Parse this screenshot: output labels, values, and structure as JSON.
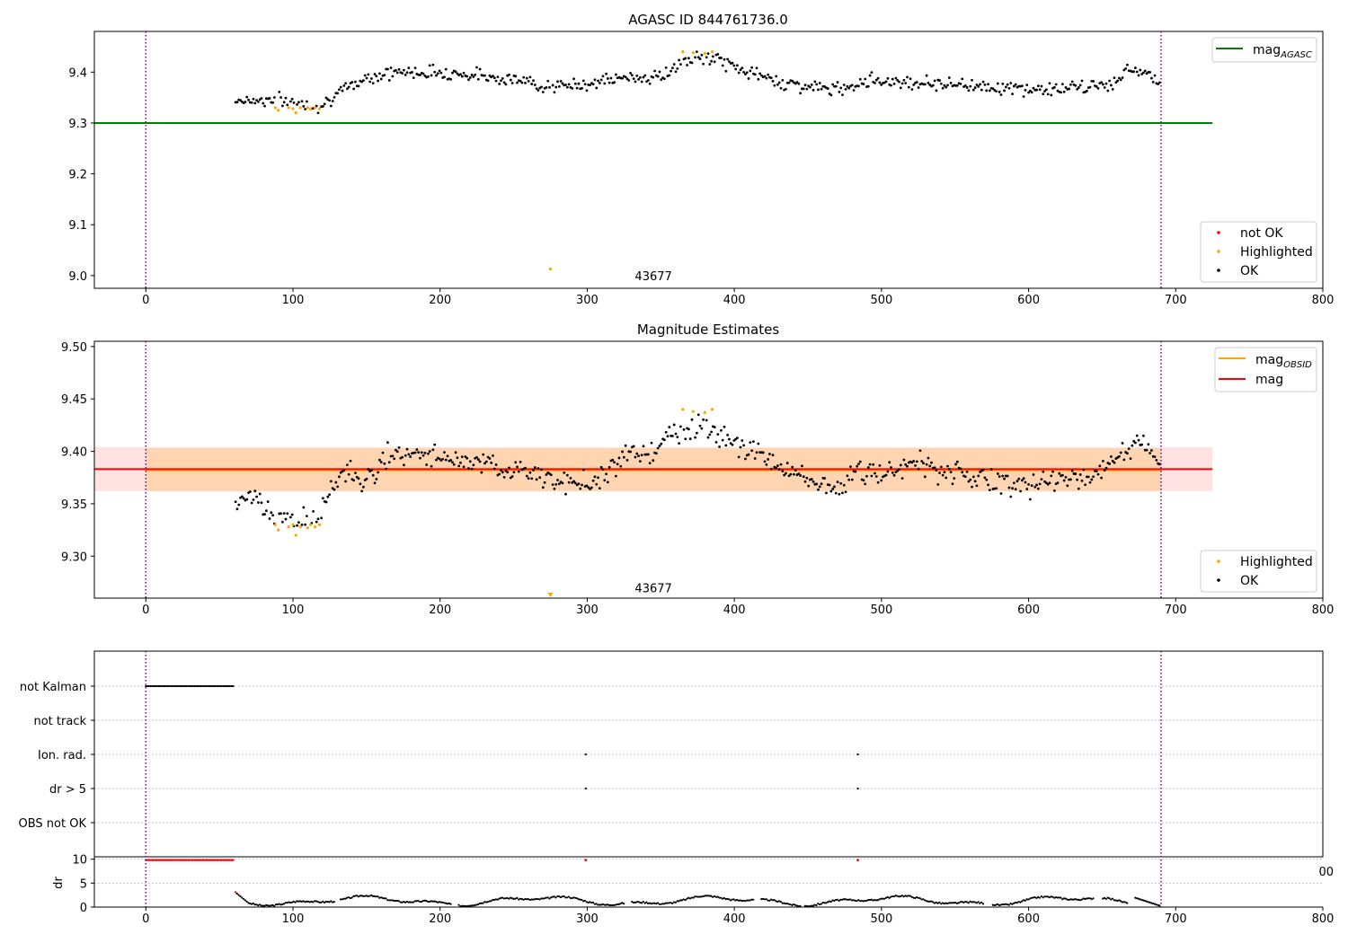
{
  "chart_data": [
    {
      "type": "scatter",
      "title": "AGASC ID 844761736.0",
      "xlim": [
        -35,
        800
      ],
      "ylim": [
        8.975,
        9.48
      ],
      "xticks": [
        "0",
        "100",
        "200",
        "300",
        "400",
        "500",
        "600",
        "700",
        "800"
      ],
      "yticks": [
        "9.0",
        "9.1",
        "9.2",
        "9.3",
        "9.4"
      ],
      "obsid_label": "43677",
      "obsid_label_at": [
        345,
        9.0
      ],
      "obsid_bounds": [
        0,
        690
      ],
      "mag_agasc": 9.3,
      "mag_agasc_xrange": [
        -35,
        725
      ],
      "legend_top": {
        "name": "mag",
        "sub": "AGASC",
        "color": "#008000"
      },
      "legend_bottom": [
        {
          "label": "not OK",
          "color": "#ff0000"
        },
        {
          "label": "Highlighted",
          "color": "#ffa500"
        },
        {
          "label": "OK",
          "color": "#000000"
        }
      ],
      "series": {
        "ok_segments": [
          {
            "x": [
              61,
              90,
              118,
              150,
              170,
              200,
              240,
              280,
              330,
              350,
              365,
              385,
              400,
              420,
              440,
              470,
              490,
              520,
              560,
              600,
              640,
              660,
              670,
              690
            ],
            "y": [
              9.345,
              9.345,
              9.335,
              9.39,
              9.4,
              9.4,
              9.39,
              9.37,
              9.39,
              9.39,
              9.42,
              9.43,
              9.41,
              9.39,
              9.375,
              9.365,
              9.385,
              9.38,
              9.375,
              9.365,
              9.37,
              9.38,
              9.41,
              9.385
            ]
          }
        ],
        "highlighted_points": [
          {
            "x": 88,
            "y": 9.33
          },
          {
            "x": 90,
            "y": 9.325
          },
          {
            "x": 97,
            "y": 9.33
          },
          {
            "x": 100,
            "y": 9.328
          },
          {
            "x": 102,
            "y": 9.32
          },
          {
            "x": 105,
            "y": 9.33
          },
          {
            "x": 110,
            "y": 9.33
          },
          {
            "x": 112,
            "y": 9.327
          },
          {
            "x": 115,
            "y": 9.33
          },
          {
            "x": 118,
            "y": 9.328
          },
          {
            "x": 275,
            "y": 9.013
          },
          {
            "x": 365,
            "y": 9.44
          },
          {
            "x": 372,
            "y": 9.438
          },
          {
            "x": 380,
            "y": 9.437
          },
          {
            "x": 385,
            "y": 9.44
          }
        ],
        "noise": 0.013
      }
    },
    {
      "type": "scatter",
      "title": "Magnitude Estimates",
      "xlim": [
        -35,
        800
      ],
      "ylim": [
        9.26,
        9.505
      ],
      "xticks": [
        "0",
        "100",
        "200",
        "300",
        "400",
        "500",
        "600",
        "700",
        "800"
      ],
      "yticks": [
        "9.30",
        "9.35",
        "9.40",
        "9.45",
        "9.50"
      ],
      "obsid_label": "43677",
      "obsid_label_at": [
        345,
        9.27
      ],
      "obsid_bounds": [
        0,
        690
      ],
      "mag": 9.383,
      "mag_band": [
        9.362,
        9.404
      ],
      "mag_obsid": 9.382,
      "mag_obsid_band": [
        9.362,
        9.403
      ],
      "line_xrange": [
        -35,
        725
      ],
      "obsid_xrange": [
        0,
        690
      ],
      "legend_top": [
        {
          "name": "mag",
          "sub": "OBSID",
          "color": "#ffa500"
        },
        {
          "name": "mag",
          "sub": "",
          "color": "#ff0000"
        }
      ],
      "legend_bottom": [
        {
          "label": "Highlighted",
          "color": "#ffa500"
        },
        {
          "label": "OK",
          "color": "#000000"
        }
      ],
      "series": {
        "ok_segments": [
          {
            "x": [
              61,
              70,
              80,
              90,
              100,
              110,
              118,
              125,
              135,
              145,
              155,
              170,
              185,
              200,
              215,
              230,
              245,
              260,
              280,
              300,
              315,
              330,
              345,
              355,
              365,
              375,
              385,
              395,
              405,
              415,
              425,
              440,
              455,
              470,
              480,
              490,
              500,
              510,
              520,
              540,
              560,
              580,
              600,
              620,
              640,
              655,
              665,
              675,
              690
            ],
            "y": [
              9.348,
              9.36,
              9.345,
              9.338,
              9.333,
              9.335,
              9.34,
              9.36,
              9.385,
              9.37,
              9.38,
              9.4,
              9.398,
              9.395,
              9.385,
              9.393,
              9.38,
              9.38,
              9.37,
              9.37,
              9.382,
              9.4,
              9.395,
              9.415,
              9.42,
              9.425,
              9.42,
              9.412,
              9.405,
              9.398,
              9.39,
              9.38,
              9.37,
              9.36,
              9.38,
              9.385,
              9.375,
              9.378,
              9.392,
              9.382,
              9.378,
              9.37,
              9.365,
              9.372,
              9.375,
              9.39,
              9.395,
              9.41,
              9.385
            ]
          }
        ],
        "highlighted_points": [
          {
            "x": 88,
            "y": 9.33
          },
          {
            "x": 90,
            "y": 9.325
          },
          {
            "x": 97,
            "y": 9.328
          },
          {
            "x": 100,
            "y": 9.33
          },
          {
            "x": 102,
            "y": 9.32
          },
          {
            "x": 105,
            "y": 9.328
          },
          {
            "x": 110,
            "y": 9.327
          },
          {
            "x": 112,
            "y": 9.33
          },
          {
            "x": 115,
            "y": 9.328
          },
          {
            "x": 118,
            "y": 9.33
          },
          {
            "x": 365,
            "y": 9.44
          },
          {
            "x": 372,
            "y": 9.438
          },
          {
            "x": 380,
            "y": 9.437
          },
          {
            "x": 385,
            "y": 9.44
          }
        ],
        "offscale_marker": {
          "x": 275,
          "color": "#ffa500"
        },
        "noise": 0.011
      }
    },
    {
      "type": "scatter",
      "title": "",
      "xlim": [
        -35,
        800
      ],
      "categories": [
        "not Kalman",
        "not track",
        "Ion. rad.",
        "dr > 5",
        "OBS not OK"
      ],
      "obsid_bounds": [
        0,
        690
      ],
      "flags": {
        "not Kalman": {
          "range": [
            0,
            60
          ]
        },
        "Ion. rad.": {
          "points": [
            299,
            484
          ]
        },
        "dr > 5": {
          "points": [
            299,
            484
          ]
        }
      }
    },
    {
      "type": "scatter",
      "title": "",
      "xlim": [
        -35,
        800
      ],
      "ylim": [
        0,
        10.5
      ],
      "ylabel": "dr",
      "yticks": [
        "0",
        "5",
        "10"
      ],
      "xticks": [
        "0",
        "100",
        "200",
        "300",
        "400",
        "500",
        "600",
        "700",
        "800"
      ],
      "obsid_bounds": [
        0,
        690
      ],
      "clipped_tick": "00",
      "red_range": [
        0,
        60
      ],
      "red_points": [
        299,
        484
      ],
      "dr_gaps": [
        [
          128,
          132
        ],
        [
          208,
          212
        ],
        [
          325,
          330
        ],
        [
          413,
          418
        ],
        [
          445,
          448
        ],
        [
          570,
          575
        ],
        [
          645,
          650
        ],
        [
          668,
          672
        ]
      ]
    }
  ]
}
